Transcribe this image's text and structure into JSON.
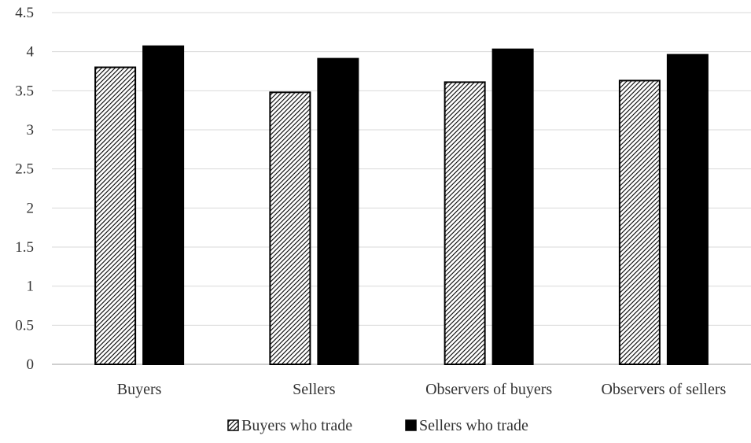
{
  "chart_data": {
    "type": "bar",
    "title": "",
    "xlabel": "",
    "ylabel": "",
    "ylim": [
      0,
      4.5
    ],
    "yticks": [
      "0",
      "0.5",
      "1",
      "1.5",
      "2",
      "2.5",
      "3",
      "3.5",
      "4",
      "4.5"
    ],
    "grid": true,
    "legend_position": "bottom",
    "categories": [
      "Buyers",
      "Sellers",
      "Observers of buyers",
      "Observers of sellers"
    ],
    "series": [
      {
        "name": "Buyers who trade",
        "values": [
          3.8,
          3.48,
          3.61,
          3.63
        ],
        "color": "#ffffff",
        "pattern": "diagonal-hatch"
      },
      {
        "name": "Sellers who trade",
        "values": [
          4.07,
          3.91,
          4.03,
          3.96
        ],
        "color": "#000000",
        "pattern": "solid"
      }
    ]
  }
}
